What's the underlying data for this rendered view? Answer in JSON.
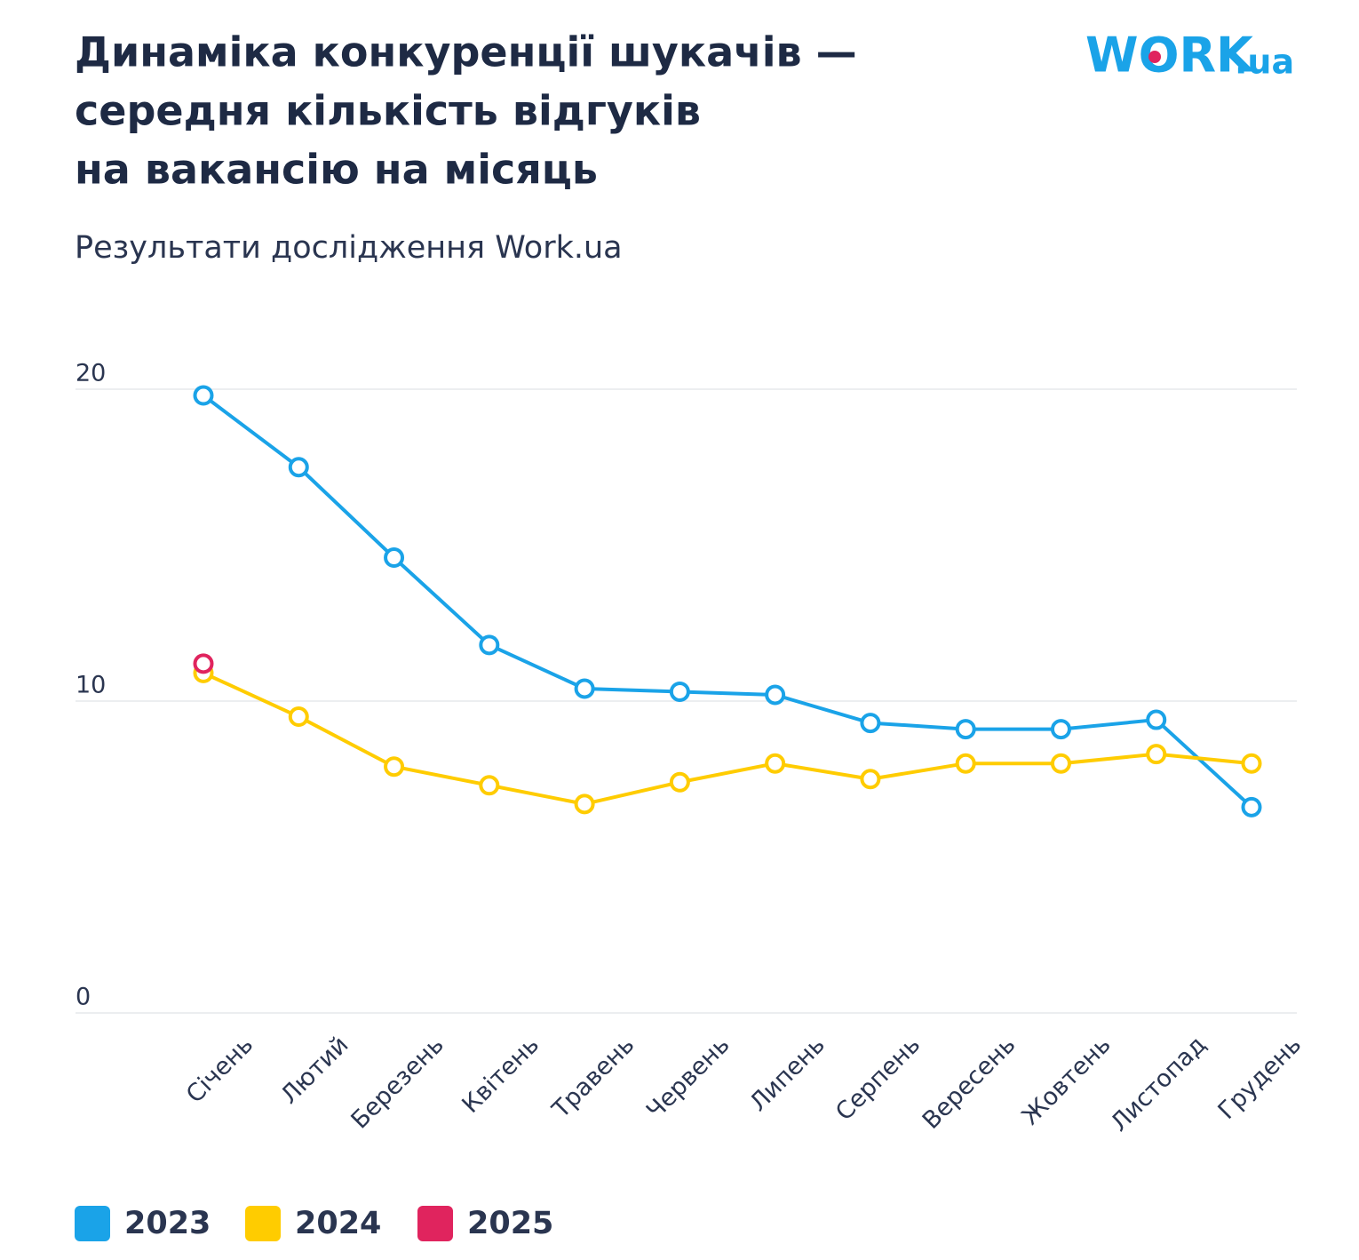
{
  "chart_data": {
    "type": "line",
    "title": [
      "Динаміка конкуренції шукачів —",
      "середня кількість відгуків",
      "на вакансію на місяць"
    ],
    "subtitle": "Результати дослідження Work.ua",
    "logo": {
      "main": "WORK",
      "suffix": ".ua"
    },
    "categories": [
      "Січень",
      "Лютий",
      "Березень",
      "Квітень",
      "Травень",
      "Червень",
      "Липень",
      "Серпень",
      "Вересень",
      "Жовтень",
      "Листопад",
      "Грудень"
    ],
    "series": [
      {
        "name": "2023",
        "color": "#1aa3e8",
        "values": [
          19.8,
          17.5,
          14.6,
          11.8,
          10.4,
          10.3,
          10.2,
          9.3,
          9.1,
          9.1,
          9.4,
          6.6
        ]
      },
      {
        "name": "2024",
        "color": "#ffcc00",
        "values": [
          10.9,
          9.5,
          7.9,
          7.3,
          6.7,
          7.4,
          8.0,
          7.5,
          8.0,
          8.0,
          8.3,
          8.0
        ]
      },
      {
        "name": "2025",
        "color": "#e0245e",
        "values": [
          11.2,
          null,
          null,
          null,
          null,
          null,
          null,
          null,
          null,
          null,
          null,
          null
        ]
      }
    ],
    "ylim": [
      0,
      20
    ],
    "yticks": [
      0,
      10,
      20
    ],
    "grid": true,
    "legend": "bottom-left"
  }
}
